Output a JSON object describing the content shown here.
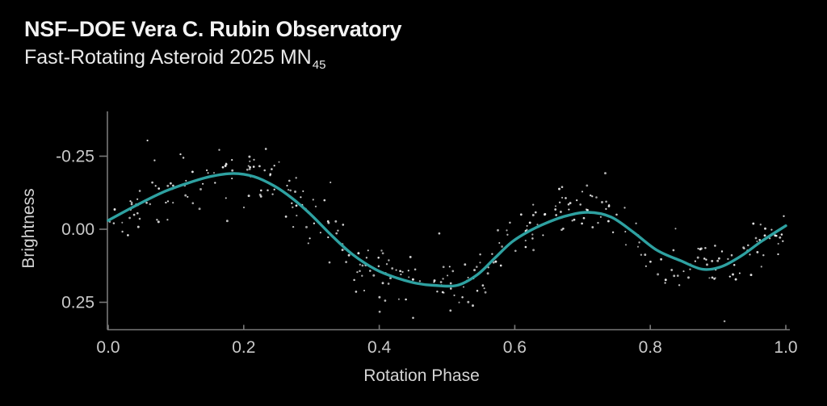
{
  "header": {
    "title": "NSF–DOE Vera C. Rubin Observatory",
    "subtitle_main": "Fast-Rotating Asteroid 2025 MN",
    "subtitle_subscript": "45"
  },
  "chart_data": {
    "type": "scatter",
    "xlabel": "Rotation Phase",
    "ylabel": "Brightness",
    "x_ticks": [
      "0.0",
      "0.2",
      "0.4",
      "0.6",
      "0.8",
      "1.0"
    ],
    "x_tick_values": [
      0.0,
      0.2,
      0.4,
      0.6,
      0.8,
      1.0
    ],
    "y_ticks": [
      "-0.25",
      "0.00",
      "0.25"
    ],
    "y_tick_values": [
      -0.25,
      0.0,
      0.25
    ],
    "xlim": [
      0.0,
      1.0
    ],
    "ylim": [
      -0.4,
      0.345
    ],
    "y_axis_inverted": true,
    "grid": false,
    "legend": "none",
    "fit_curve": {
      "description": "two-peaked rotational light-curve fit; brightness in magnitude-like units (negative = brighter), primary maximum near phase 0.17, primary minimum near phase 0.48, secondary maximum near phase 0.71, secondary minimum near phase 0.88",
      "points": [
        [
          0.0,
          -0.03
        ],
        [
          0.04,
          -0.08
        ],
        [
          0.08,
          -0.126
        ],
        [
          0.115,
          -0.156
        ],
        [
          0.15,
          -0.18
        ],
        [
          0.185,
          -0.191
        ],
        [
          0.215,
          -0.18
        ],
        [
          0.245,
          -0.148
        ],
        [
          0.272,
          -0.105
        ],
        [
          0.3,
          -0.048
        ],
        [
          0.33,
          0.022
        ],
        [
          0.36,
          0.085
        ],
        [
          0.395,
          0.138
        ],
        [
          0.425,
          0.166
        ],
        [
          0.455,
          0.185
        ],
        [
          0.48,
          0.192
        ],
        [
          0.515,
          0.192
        ],
        [
          0.545,
          0.155
        ],
        [
          0.57,
          0.1
        ],
        [
          0.595,
          0.045
        ],
        [
          0.62,
          0.008
        ],
        [
          0.645,
          -0.02
        ],
        [
          0.675,
          -0.045
        ],
        [
          0.708,
          -0.058
        ],
        [
          0.742,
          -0.042
        ],
        [
          0.775,
          0.01
        ],
        [
          0.81,
          0.072
        ],
        [
          0.845,
          0.108
        ],
        [
          0.877,
          0.137
        ],
        [
          0.905,
          0.128
        ],
        [
          0.935,
          0.09
        ],
        [
          0.965,
          0.04
        ],
        [
          1.0,
          -0.012
        ]
      ]
    },
    "scatter": {
      "description": "individual photometric measurements scattered about the fit curve (positions estimated from pixels, procedurally reproduced)",
      "count": 345,
      "noise_sigma": 0.05,
      "outlier_count": 12,
      "outlier_sigma": 0.12,
      "seed": 42,
      "marker_radius_px": 1.3
    },
    "colors": {
      "background": "#000000",
      "curve": "#2ea1a1",
      "points": "#ececec",
      "axis": "#787878",
      "tick_labels": "#c9c9c9",
      "axis_labels": "#d4d4d4",
      "title": "#f3f3f3",
      "subtitle": "#e9e9e9"
    }
  }
}
